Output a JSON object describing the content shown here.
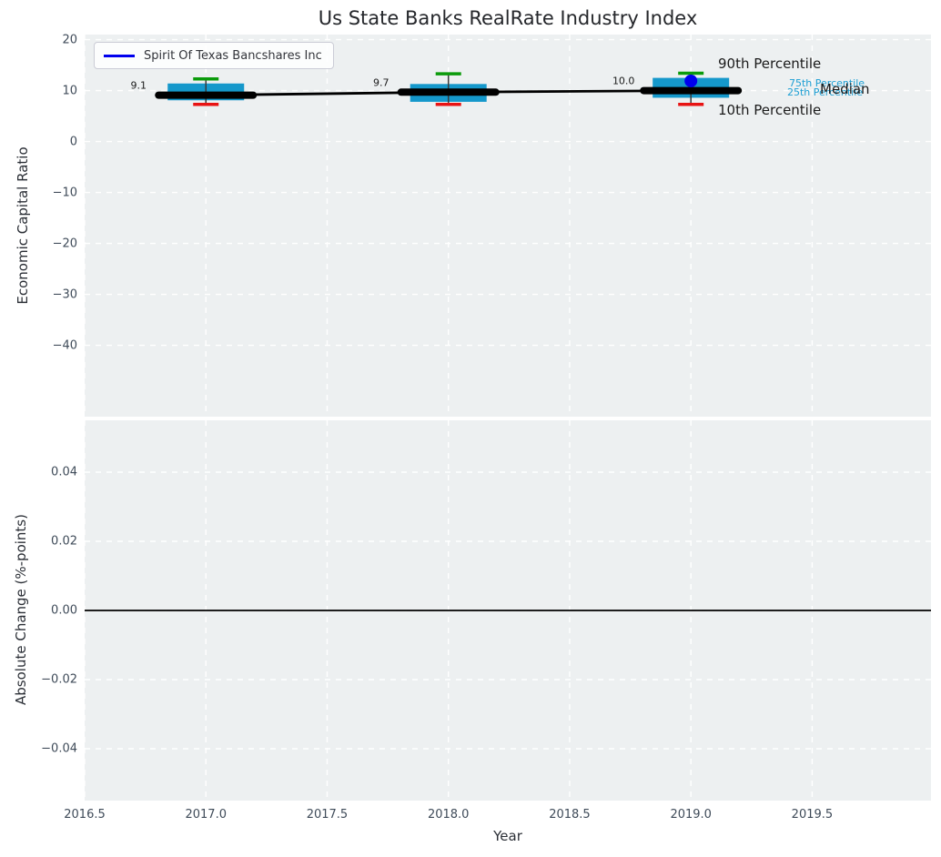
{
  "figure": {
    "title": "Us State Banks RealRate Industry Index"
  },
  "legend": {
    "label": "Spirit Of Texas Bancshares Inc"
  },
  "annotations": {
    "p90": "90th Percentile",
    "p75": "75th Percentile",
    "p25": "25th Percentile",
    "median": "Median",
    "p10": "10th Percentile"
  },
  "colors": {
    "axes_background": "#edf0f1",
    "grid": "#ffffff",
    "box_fill": "#1598cb",
    "whisker": "#3a3a3a",
    "p90_cap": "#0b9b0b",
    "p10_cap": "#e81313",
    "median": "#000000",
    "company": "#0000ee",
    "percentile_text": "#1d9fd4",
    "tick_text": "#3f4b59",
    "zero_line": "#000000"
  },
  "chart_data": [
    {
      "type": "boxplot",
      "title": "Us State Banks RealRate Industry Index",
      "ylabel": "Economic Capital Ratio",
      "x": [
        2017,
        2018,
        2019
      ],
      "xlim": [
        2016.5,
        2019.99
      ],
      "ylim": [
        -54,
        21
      ],
      "grid": true,
      "legend_position": "upper left",
      "xticks": [
        2016.5,
        2017.0,
        2017.5,
        2018.0,
        2018.5,
        2019.0,
        2019.5
      ],
      "yticks": [
        20,
        10,
        0,
        -10,
        -20,
        -30,
        -40
      ],
      "ytick_labels": [
        "20",
        "10",
        "0",
        "−10",
        "−20",
        "−30",
        "−40"
      ],
      "series": [
        {
          "name": "90th Percentile",
          "role": "p90",
          "values": [
            12.3,
            13.3,
            13.4
          ]
        },
        {
          "name": "75th Percentile",
          "role": "p75",
          "values": [
            11.4,
            11.3,
            12.5
          ]
        },
        {
          "name": "Median",
          "role": "median",
          "values": [
            9.1,
            9.7,
            10.0
          ]
        },
        {
          "name": "25th Percentile",
          "role": "p25",
          "values": [
            8.1,
            7.8,
            8.6
          ]
        },
        {
          "name": "10th Percentile",
          "role": "p10",
          "values": [
            7.3,
            7.3,
            7.3
          ]
        },
        {
          "name": "Spirit Of Texas Bancshares Inc",
          "role": "company",
          "values": [
            null,
            null,
            11.9
          ]
        }
      ],
      "median_labels": [
        "9.1",
        "9.7",
        "10.0"
      ]
    },
    {
      "type": "line",
      "ylabel": "Absolute Change (%-points)",
      "xlabel": "Year",
      "xlim": [
        2016.5,
        2019.99
      ],
      "ylim": [
        -0.055,
        0.055
      ],
      "grid": true,
      "zero_line": 0.0,
      "xticks": [
        2016.5,
        2017.0,
        2017.5,
        2018.0,
        2018.5,
        2019.0,
        2019.5
      ],
      "xtick_labels": [
        "2016.5",
        "2017.0",
        "2017.5",
        "2018.0",
        "2018.5",
        "2019.0",
        "2019.5"
      ],
      "yticks": [
        0.04,
        0.02,
        0.0,
        -0.02,
        -0.04
      ],
      "ytick_labels": [
        "0.04",
        "0.02",
        "0.00",
        "−0.02",
        "−0.04"
      ],
      "series": []
    }
  ]
}
